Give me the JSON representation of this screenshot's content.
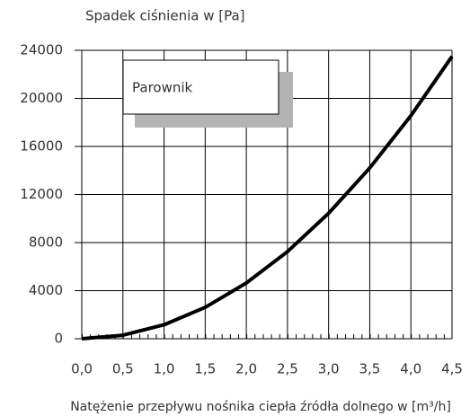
{
  "chart_data": {
    "type": "line",
    "ylabel": "Spadek ciśnienia w [Pa]",
    "xlabel": "Natężenie przepływu nośnika ciepła źródła dolnego w [m³/h]",
    "x": [
      0,
      0.5,
      1.0,
      1.5,
      2.0,
      2.5,
      3.0,
      3.5,
      4.0,
      4.5
    ],
    "values": [
      0,
      290,
      1160,
      2610,
      4640,
      7250,
      10440,
      14210,
      18560,
      23490
    ],
    "series_name": "Parownik",
    "color": "#000000",
    "xlim": [
      0,
      4.5
    ],
    "ylim": [
      0,
      24000
    ],
    "xticks": [
      {
        "value": 0,
        "label": "0,0"
      },
      {
        "value": 0.5,
        "label": "0,5"
      },
      {
        "value": 1.0,
        "label": "1,0"
      },
      {
        "value": 1.5,
        "label": "1,5"
      },
      {
        "value": 2.0,
        "label": "2,0"
      },
      {
        "value": 2.5,
        "label": "2,5"
      },
      {
        "value": 3.0,
        "label": "3,0"
      },
      {
        "value": 3.5,
        "label": "3,5"
      },
      {
        "value": 4.0,
        "label": "4,0"
      },
      {
        "value": 4.5,
        "label": "4,5"
      }
    ],
    "yticks": [
      0,
      4000,
      8000,
      12000,
      16000,
      20000,
      24000
    ],
    "grid": true
  }
}
